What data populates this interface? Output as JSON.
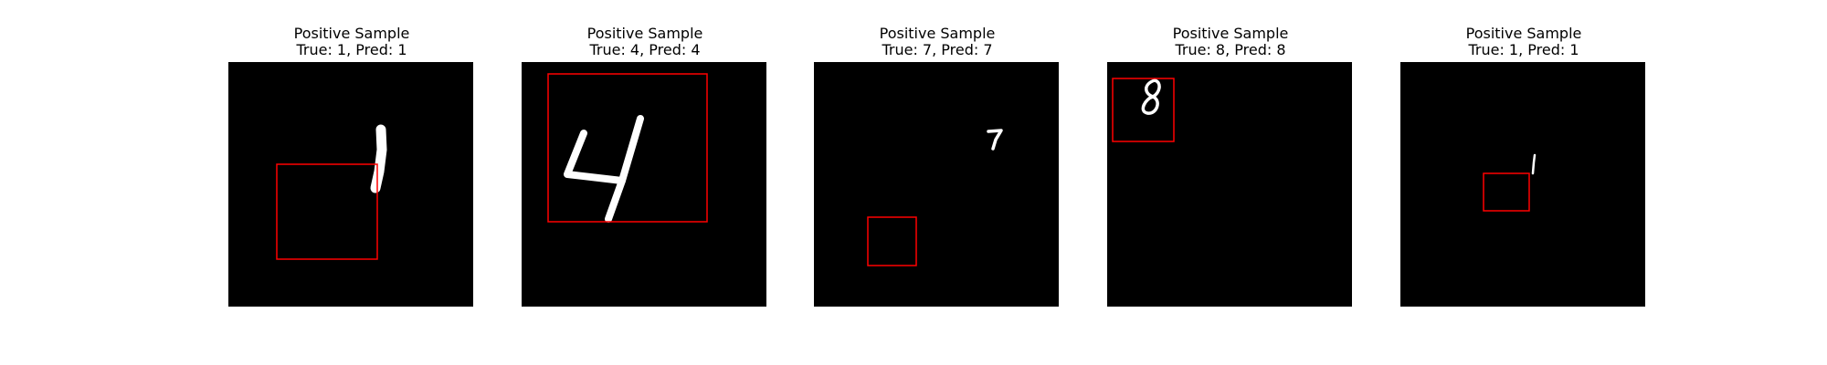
{
  "colors": {
    "background": "#000000",
    "digit": "#ffffff",
    "box": "#ff0000"
  },
  "panels": [
    {
      "title": "Positive Sample",
      "subtitle": "True: 1, Pred: 1",
      "digit": "1"
    },
    {
      "title": "Positive Sample",
      "subtitle": "True: 4, Pred: 4",
      "digit": "4"
    },
    {
      "title": "Positive Sample",
      "subtitle": "True: 7, Pred: 7",
      "digit": "7"
    },
    {
      "title": "Positive Sample",
      "subtitle": "True: 8, Pred: 8",
      "digit": "8"
    },
    {
      "title": "Positive Sample",
      "subtitle": "True: 1, Pred: 1",
      "digit": "1"
    }
  ]
}
